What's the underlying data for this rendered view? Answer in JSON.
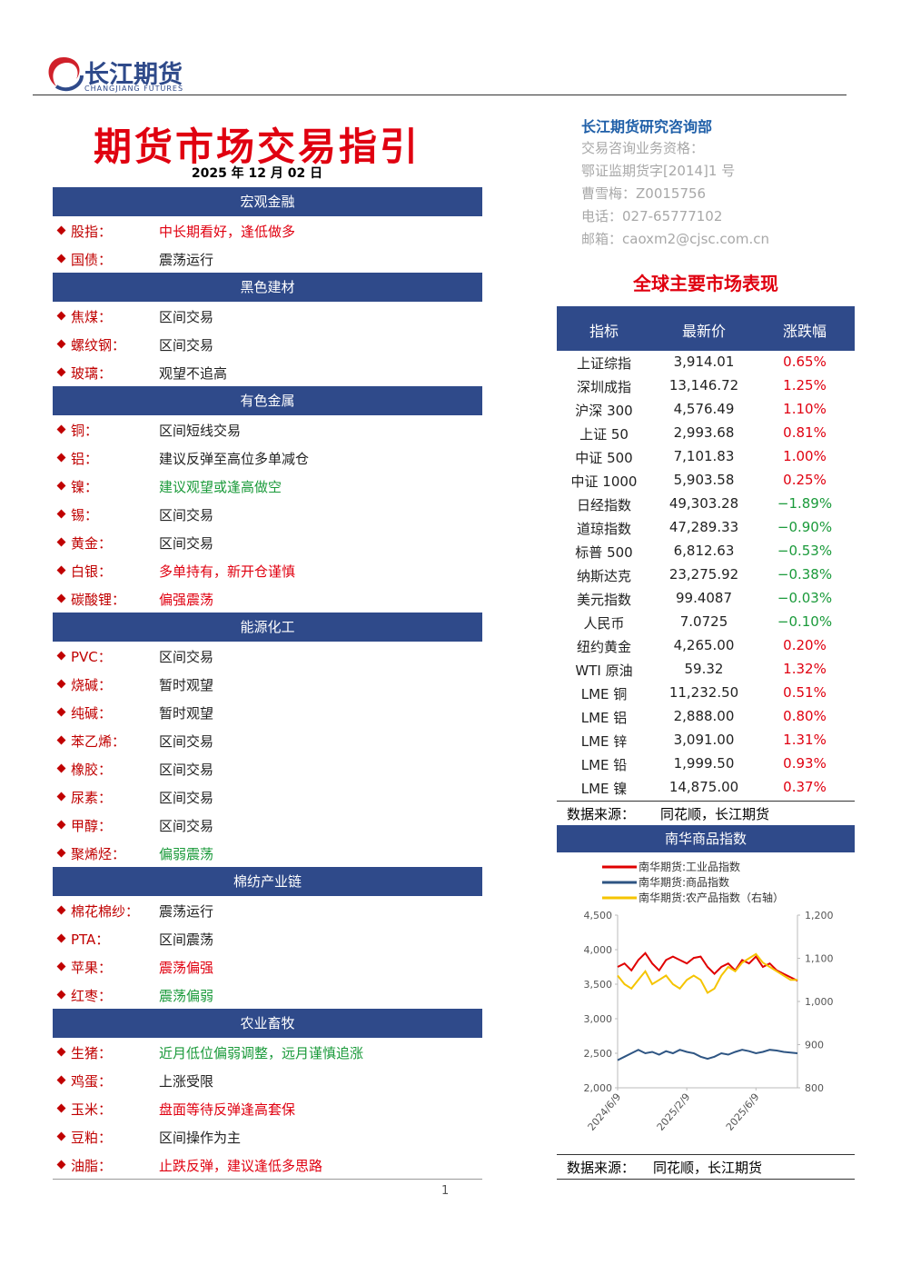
{
  "header": {
    "logo_cn": "长江期货",
    "logo_en": "CHANGJIANG FUTURES"
  },
  "title": "期货市场交易指引",
  "date": "2025 年 12 月 02 日",
  "sections": [
    {
      "title": "宏观金融",
      "items": [
        {
          "name": "股指：",
          "view": "中长期看好，逢低做多",
          "tone": "red"
        },
        {
          "name": "国债：",
          "view": "震荡运行",
          "tone": "black"
        }
      ]
    },
    {
      "title": "黑色建材",
      "items": [
        {
          "name": "焦煤：",
          "view": "区间交易",
          "tone": "black"
        },
        {
          "name": "螺纹钢：",
          "view": "区间交易",
          "tone": "black"
        },
        {
          "name": "玻璃：",
          "view": "观望不追高",
          "tone": "black"
        }
      ]
    },
    {
      "title": "有色金属",
      "items": [
        {
          "name": "铜：",
          "view": "区间短线交易",
          "tone": "black"
        },
        {
          "name": "铝：",
          "view": "建议反弹至高位多单减仓",
          "tone": "black"
        },
        {
          "name": "镍：",
          "view": "建议观望或逢高做空",
          "tone": "green"
        },
        {
          "name": "锡：",
          "view": "区间交易",
          "tone": "black"
        },
        {
          "name": "黄金：",
          "view": "区间交易",
          "tone": "black"
        },
        {
          "name": "白银：",
          "view": "多单持有，新开仓谨慎",
          "tone": "red"
        },
        {
          "name": "碳酸锂：",
          "view": "偏强震荡",
          "tone": "red"
        }
      ]
    },
    {
      "title": "能源化工",
      "items": [
        {
          "name": "PVC：",
          "view": "区间交易",
          "tone": "black"
        },
        {
          "name": "烧碱：",
          "view": "暂时观望",
          "tone": "black"
        },
        {
          "name": "纯碱：",
          "view": "暂时观望",
          "tone": "black"
        },
        {
          "name": "苯乙烯：",
          "view": "区间交易",
          "tone": "black"
        },
        {
          "name": "橡胶：",
          "view": "区间交易",
          "tone": "black"
        },
        {
          "name": "尿素：",
          "view": "区间交易",
          "tone": "black"
        },
        {
          "name": "甲醇：",
          "view": "区间交易",
          "tone": "black"
        },
        {
          "name": "聚烯烃：",
          "view": "偏弱震荡",
          "tone": "green"
        }
      ]
    },
    {
      "title": "棉纺产业链",
      "items": [
        {
          "name": "棉花棉纱：",
          "view": "震荡运行",
          "tone": "black"
        },
        {
          "name": "PTA：",
          "view": "区间震荡",
          "tone": "black"
        },
        {
          "name": "苹果：",
          "view": "震荡偏强",
          "tone": "red"
        },
        {
          "name": "红枣：",
          "view": "震荡偏弱",
          "tone": "green"
        }
      ]
    },
    {
      "title": "农业畜牧",
      "items": [
        {
          "name": "生猪：",
          "view": "近月低位偏弱调整，远月谨慎追涨",
          "tone": "green"
        },
        {
          "name": "鸡蛋：",
          "view": "上涨受限",
          "tone": "black"
        },
        {
          "name": "玉米：",
          "view": "盘面等待反弹逢高套保",
          "tone": "red"
        },
        {
          "name": "豆粕：",
          "view": "区间操作为主",
          "tone": "black"
        },
        {
          "name": "油脂：",
          "view": "止跌反弹，建议逢低多思路",
          "tone": "red"
        }
      ]
    }
  ],
  "contact": {
    "dept": "长江期货研究咨询部",
    "lines": [
      "交易咨询业务资格：",
      "鄂证监期货字[2014]1 号",
      "曹雪梅：Z0015756",
      "电话：027-65777102",
      "邮箱：caoxm2@cjsc.com.cn"
    ]
  },
  "market": {
    "title": "全球主要市场表现",
    "columns": [
      "指标",
      "最新价",
      "涨跌幅"
    ],
    "rows": [
      [
        "上证综指",
        "3,914.01",
        "0.65%"
      ],
      [
        "深圳成指",
        "13,146.72",
        "1.25%"
      ],
      [
        "沪深 300",
        "4,576.49",
        "1.10%"
      ],
      [
        "上证 50",
        "2,993.68",
        "0.81%"
      ],
      [
        "中证 500",
        "7,101.83",
        "1.00%"
      ],
      [
        "中证 1000",
        "5,903.58",
        "0.25%"
      ],
      [
        "日经指数",
        "49,303.28",
        "−1.89%"
      ],
      [
        "道琼指数",
        "47,289.33",
        "−0.90%"
      ],
      [
        "标普 500",
        "6,812.63",
        "−0.53%"
      ],
      [
        "纳斯达克",
        "23,275.92",
        "−0.38%"
      ],
      [
        "美元指数",
        "99.4087",
        "−0.03%"
      ],
      [
        "人民币",
        "7.0725",
        "−0.10%"
      ],
      [
        "纽约黄金",
        "4,265.00",
        "0.20%"
      ],
      [
        "WTI 原油",
        "59.32",
        "1.32%"
      ],
      [
        "LME 铜",
        "11,232.50",
        "0.51%"
      ],
      [
        "LME 铝",
        "2,888.00",
        "0.80%"
      ],
      [
        "LME 锌",
        "3,091.00",
        "1.31%"
      ],
      [
        "LME 铅",
        "1,999.50",
        "0.93%"
      ],
      [
        "LME 镍",
        "14,875.00",
        "0.37%"
      ]
    ],
    "source_label": "数据来源：",
    "source": "同花顺，长江期货"
  },
  "chart_data": {
    "type": "line",
    "title": "南华商品指数",
    "categories": [
      "2024/6/9",
      null,
      null,
      null,
      null,
      null,
      null,
      null,
      null,
      null,
      "2025/2/9",
      null,
      null,
      null,
      null,
      null,
      null,
      null,
      null,
      null,
      "2025/6/9",
      null,
      null,
      null,
      null,
      null,
      null
    ],
    "series": [
      {
        "name": "南华期货:工业品指数",
        "color": "#e00000",
        "values": [
          3750,
          3800,
          3700,
          3850,
          3950,
          3800,
          3700,
          3850,
          3900,
          3850,
          3800,
          3880,
          3900,
          3750,
          3650,
          3750,
          3800,
          3700,
          3850,
          3800,
          3900,
          3750,
          3800,
          3700,
          3650,
          3600,
          3550
        ]
      },
      {
        "name": "南华期货:商品指数",
        "color": "#2e5583",
        "values": [
          2400,
          2450,
          2500,
          2550,
          2500,
          2520,
          2480,
          2530,
          2500,
          2550,
          2520,
          2500,
          2450,
          2420,
          2450,
          2500,
          2480,
          2520,
          2550,
          2530,
          2500,
          2520,
          2550,
          2540,
          2520,
          2510,
          2500
        ]
      },
      {
        "name": "南华期货:农产品指数（右轴）",
        "color": "#f5c400",
        "axis": "y2",
        "values": [
          1060,
          1040,
          1030,
          1050,
          1070,
          1040,
          1050,
          1060,
          1040,
          1030,
          1050,
          1060,
          1050,
          1020,
          1030,
          1060,
          1080,
          1070,
          1090,
          1100,
          1110,
          1090,
          1080,
          1070,
          1060,
          1050,
          1050
        ]
      }
    ],
    "ylim": [
      2000,
      4500
    ],
    "yticks": [
      {
        "value": 2000,
        "label": "2,000"
      },
      {
        "value": 2500,
        "label": "2,500"
      },
      {
        "value": 3000,
        "label": "3,000"
      },
      {
        "value": 3500,
        "label": "3,500"
      },
      {
        "value": 4000,
        "label": "4,000"
      },
      {
        "value": 4500,
        "label": "4,500"
      }
    ],
    "y2lim": [
      800,
      1200
    ],
    "y2ticks": [
      800,
      900,
      {
        "value": 1000,
        "label": "1,000"
      },
      {
        "value": 1100,
        "label": "1,100"
      },
      {
        "value": 1200,
        "label": "1,200"
      }
    ],
    "source_label": "数据来源：",
    "source": "同花顺，长江期货"
  },
  "page_number": "1"
}
